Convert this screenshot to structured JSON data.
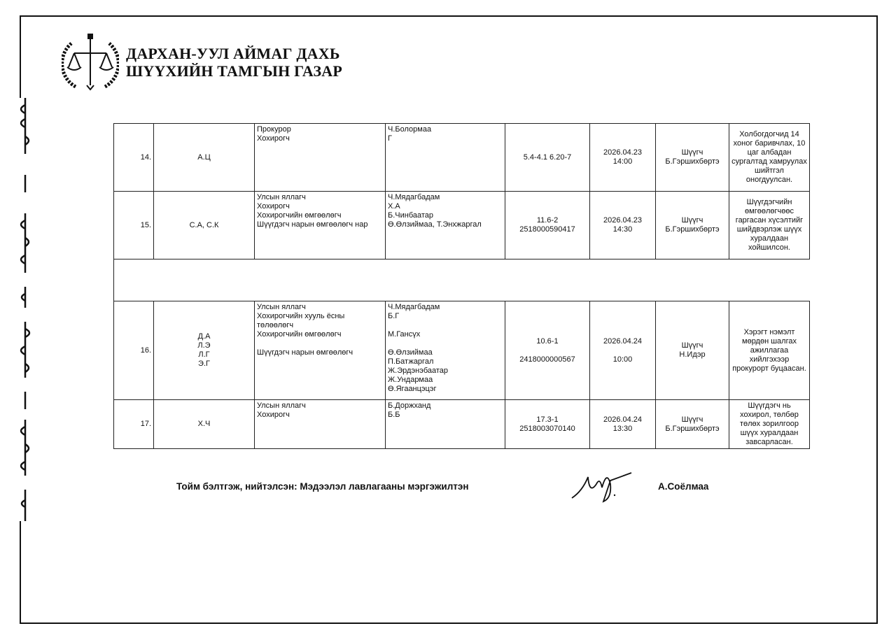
{
  "header": {
    "org_line1": "ДАРХАН-УУЛ АЙМАГ ДАХЬ",
    "org_line2": "ШҮҮХИЙН ТАМГЫН ГАЗАР"
  },
  "rows": [
    {
      "no": "14.",
      "defendant": "А.Ц",
      "roles": "Прокурор\nХохирогч",
      "names": "Ч.Болормаа\nГ",
      "article": "5.4-4.1 6.20-7",
      "datetime": "2026.04.23\n14:00",
      "judge": "Шүүгч\nБ.Гэршихбөртэ",
      "result": "Холбогдогчид 14 хоног баривчлах, 10 цаг албадан сургалтад хамруулах шийтгэл оногдуулсан."
    },
    {
      "no": "15.",
      "defendant": "С.А, С.К",
      "roles": "Улсын яллагч\nХохирогч\nХохирогчийн өмгөөлөгч\nШүүгдэгч нарын өмгөөлөгч нар",
      "names": "Ч.Мядагбадам\nХ.А\nБ.Чинбаатар\nӨ.Өлзиймаа, Т.Энхжаргал",
      "article": "11.6-2\n2518000590417",
      "datetime": "2026.04.23\n14:30",
      "judge": "Шүүгч\nБ.Гэршихбөртэ",
      "result": "Шүүгдэгчийн өмгөөлөгчөөс гаргасан хүсэлтийг шийдвэрлэж шүүх хуралдаан хойшилсон."
    },
    {
      "no": "16.",
      "defendant": "Д.А\nЛ.Э\nЛ.Г\nЭ.Г",
      "roles": "Улсын яллагч\nХохирогчийн хууль ёсны төлөөлөгч\nХохирогчийн өмгөөлөгч\n\nШүүгдэгч нарын өмгөөлөгч",
      "names": "Ч.Мядагбадам\nБ.Г\n\nМ.Гансүх\n\nӨ.Өлзиймаа\nП.Батжаргал\nЖ.Эрдэнэбаатар\nЖ.Ундармаа\nӨ.Ягаанцэцэг",
      "article": "10.6-1\n\n2418000000567",
      "datetime": "2026.04.24\n\n10:00",
      "judge": "Шүүгч\nН.Идэр",
      "result": "Хэрэгт нэмэлт мөрдөн шалгах ажиллагаа хийлгэхээр прокурорт буцаасан."
    },
    {
      "no": "17.",
      "defendant": "Х.Ч",
      "roles": "Улсын яллагч\nХохирогч",
      "names": "Б.Доржханд\nБ.Б",
      "article": "17.3-1\n2518003070140",
      "datetime": "2026.04.24\n13:30",
      "judge": "Шүүгч\nБ.Гэршихбөртэ",
      "result": "Шүүгдэгч нь хохирол, төлбөр төлөх зорилгоор шүүх хуралдаан завсарласан."
    }
  ],
  "footer": {
    "prepared_by": "Тойм бэлтгэж, нийтэлсэн: Мэдээлэл лавлагааны мэргэжилтэн",
    "signer": "А.Соёлмаа"
  }
}
